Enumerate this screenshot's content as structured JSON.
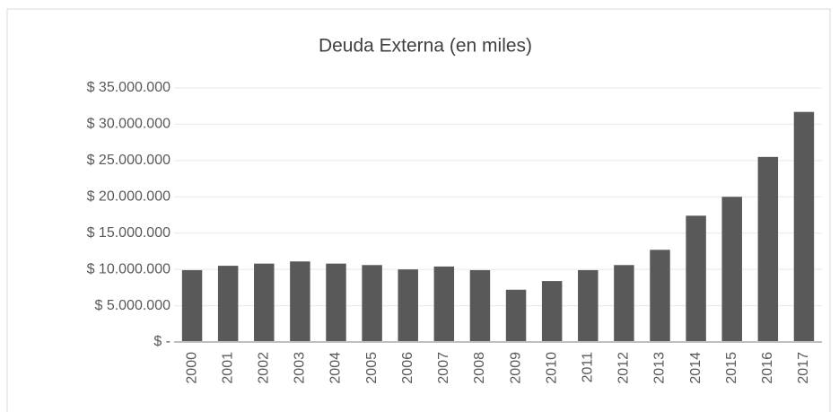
{
  "chart_data": {
    "type": "bar",
    "title": "Deuda Externa (en miles)",
    "categories": [
      "2000",
      "2001",
      "2002",
      "2003",
      "2004",
      "2005",
      "2006",
      "2007",
      "2008",
      "2009",
      "2010",
      "2011",
      "2012",
      "2013",
      "2014",
      "2015",
      "2016",
      "2017"
    ],
    "values": [
      9900000,
      10500000,
      10800000,
      11100000,
      10800000,
      10600000,
      10000000,
      10400000,
      9900000,
      7200000,
      8400000,
      9900000,
      10600000,
      12700000,
      17400000,
      20000000,
      25500000,
      31700000
    ],
    "color": "#595959",
    "ylim": [
      0,
      35000000
    ],
    "yticks": [
      {
        "value": 0,
        "label": "$ -"
      },
      {
        "value": 5000000,
        "label": "$ 5.000.000"
      },
      {
        "value": 10000000,
        "label": "$ 10.000.000"
      },
      {
        "value": 15000000,
        "label": "$ 15.000.000"
      },
      {
        "value": 20000000,
        "label": "$ 20.000.000"
      },
      {
        "value": 25000000,
        "label": "$ 25.000.000"
      },
      {
        "value": 30000000,
        "label": "$ 30.000.000"
      },
      {
        "value": 35000000,
        "label": "$ 35.000.000"
      }
    ],
    "grid": true
  }
}
